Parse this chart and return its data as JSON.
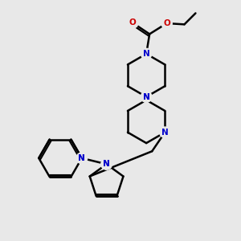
{
  "background_color": "#e8e8e8",
  "bond_color": "#000000",
  "N_color": "#0000cc",
  "O_color": "#cc0000",
  "line_width": 1.8,
  "figsize": [
    3.0,
    3.0
  ],
  "dpi": 100,
  "xlim": [
    0,
    10
  ],
  "ylim": [
    0,
    11
  ]
}
